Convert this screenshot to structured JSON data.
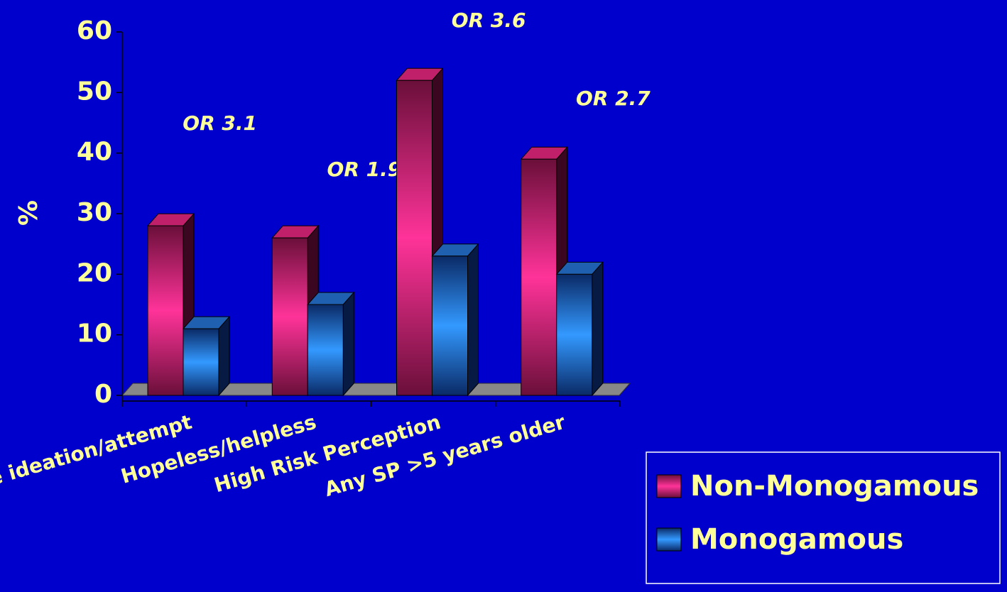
{
  "chart_data": {
    "type": "bar3d",
    "categories": [
      "Suicide ideation/attempt",
      "Hopeless/helpless",
      "High Risk Perception",
      "Any SP >5 years older"
    ],
    "series": [
      {
        "name": "Non-Monogamous",
        "color": "#ff3399",
        "values": [
          28,
          26,
          52,
          39
        ]
      },
      {
        "name": "Monogamous",
        "color": "#3399ff",
        "values": [
          11,
          15,
          23,
          20
        ]
      }
    ],
    "annotations": [
      "OR 3.1",
      "OR 1.9",
      "OR 3.6",
      "OR 2.7"
    ],
    "ylabel": "%",
    "ylim": [
      0,
      60
    ],
    "yticks": [
      0,
      10,
      20,
      30,
      40,
      50,
      60
    ]
  }
}
